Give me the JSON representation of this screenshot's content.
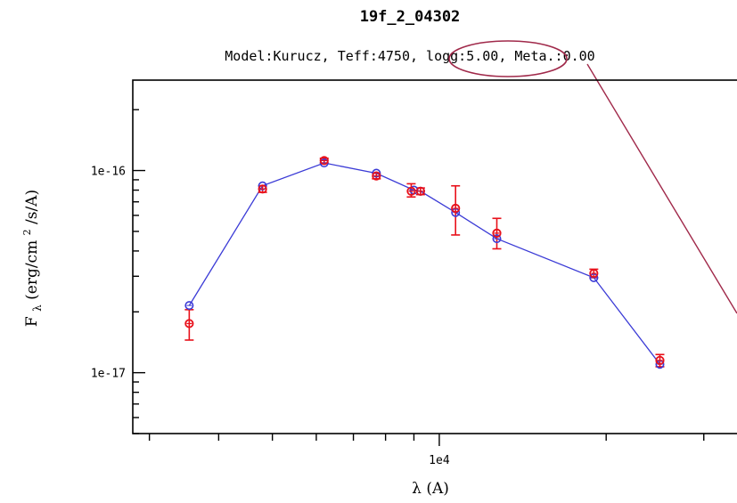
{
  "chart_data": {
    "type": "scatter",
    "title": "19f_2_04302",
    "subtitle": "Model:Kurucz, Teff:4750, logg:5.00, Meta.:0.00",
    "highlighted_text": "logg:5.00",
    "xlabel_base": "λ",
    "xlabel_unit": "(A)",
    "ylabel_prefix": "F",
    "ylabel_sub": "λ",
    "ylabel_unit_a": "(erg/cm",
    "ylabel_sup": "2",
    "ylabel_unit_b": "/s/A)",
    "x_scale": "log",
    "y_scale": "log",
    "xlim": [
      2800,
      36000
    ],
    "ylim": [
      5e-18,
      2.8e-16
    ],
    "y_ticks": [
      1e-17,
      1e-16
    ],
    "y_tick_labels": [
      "1e-17",
      "1e-16"
    ],
    "x_ticks": [
      10000
    ],
    "x_tick_labels": [
      "1e4"
    ],
    "grid": false,
    "legend": "none",
    "series": [
      {
        "role": "model",
        "color": "#3b3bd6",
        "x": [
          3540,
          4800,
          6200,
          7700,
          9000,
          9250,
          10700,
          12700,
          19000,
          25000
        ],
        "y": [
          2.15e-17,
          8.4e-17,
          1.09e-16,
          9.7e-17,
          8e-17,
          7.9e-17,
          6.2e-17,
          4.6e-17,
          2.95e-17,
          1.1e-17
        ]
      },
      {
        "role": "observed",
        "color": "#e8101a",
        "x": [
          3540,
          4800,
          6200,
          7700,
          8900,
          9250,
          10700,
          12700,
          19000,
          25000
        ],
        "y": [
          1.75e-17,
          8.1e-17,
          1.12e-16,
          9.4e-17,
          7.9e-17,
          7.9e-17,
          6.5e-17,
          4.9e-17,
          3.1e-17,
          1.15e-17
        ],
        "err_lo": [
          1.45e-17,
          7.8e-17,
          1.09e-16,
          9.1e-17,
          7.4e-17,
          7.6e-17,
          4.8e-17,
          4.1e-17,
          2.95e-17,
          1.07e-17
        ],
        "err_hi": [
          2.05e-17,
          8.4e-17,
          1.15e-16,
          9.7e-17,
          8.6e-17,
          8.2e-17,
          8.4e-17,
          5.8e-17,
          3.25e-17,
          1.23e-17
        ]
      }
    ]
  },
  "colors": {
    "annotation": "#a0294a",
    "axis": "#000000"
  }
}
